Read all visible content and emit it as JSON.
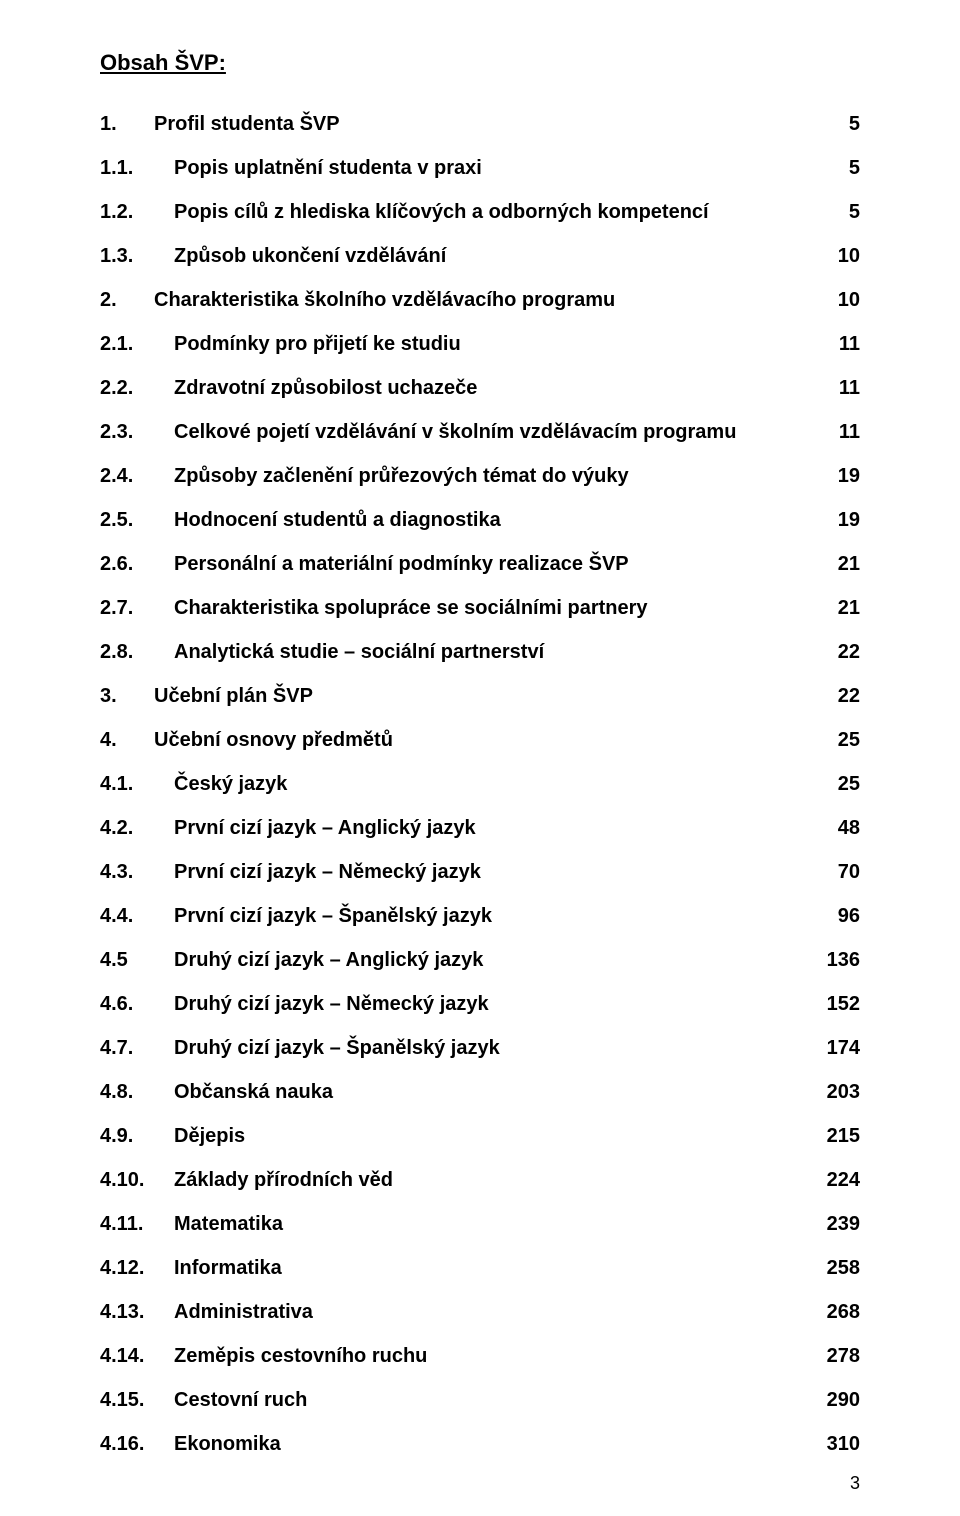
{
  "document": {
    "title": "Obsah ŠVP:",
    "footer_page_number": "3",
    "background_color": "#ffffff",
    "text_color": "#000000",
    "title_fontsize_pt": 16,
    "entry_fontsize_pt": 15,
    "font_family": "Arial",
    "entries": [
      {
        "num": "1.",
        "label": "Profil studenta ŠVP",
        "page": "5",
        "num_short": true
      },
      {
        "num": "1.1.",
        "label": "Popis uplatnění studenta v praxi",
        "page": "5",
        "num_short": false
      },
      {
        "num": "1.2.",
        "label": "Popis cílů z hlediska klíčových a odborných kompetencí",
        "page": "5",
        "num_short": false
      },
      {
        "num": "1.3.",
        "label": "Způsob ukončení vzdělávání",
        "page": "10",
        "num_short": false
      },
      {
        "num": "2.",
        "label": "Charakteristika školního vzdělávacího programu",
        "page": "10",
        "num_short": true
      },
      {
        "num": "2.1.",
        "label": "Podmínky pro přijetí ke studiu",
        "page": "11",
        "num_short": false
      },
      {
        "num": "2.2.",
        "label": "Zdravotní způsobilost uchazeče",
        "page": "11",
        "num_short": false
      },
      {
        "num": "2.3.",
        "label": "Celkové pojetí vzdělávání v školním vzdělávacím programu",
        "page": "11",
        "num_short": false
      },
      {
        "num": "2.4.",
        "label": "Způsoby začlenění průřezových témat do výuky",
        "page": "19",
        "num_short": false
      },
      {
        "num": "2.5.",
        "label": "Hodnocení studentů a diagnostika",
        "page": "19",
        "num_short": false
      },
      {
        "num": "2.6.",
        "label": "Personální a materiální podmínky realizace ŠVP",
        "page": "21",
        "num_short": false
      },
      {
        "num": "2.7.",
        "label": "Charakteristika spolupráce se sociálními partnery",
        "page": "21",
        "num_short": false
      },
      {
        "num": "2.8.",
        "label": "Analytická studie – sociální partnerství",
        "page": "22",
        "num_short": false
      },
      {
        "num": "3.",
        "label": "Učební plán ŠVP",
        "page": "22",
        "num_short": true
      },
      {
        "num": "4.",
        "label": "Učební osnovy předmětů",
        "page": "25",
        "num_short": true
      },
      {
        "num": "4.1.",
        "label": "Český jazyk",
        "page": "25",
        "num_short": false
      },
      {
        "num": "4.2.",
        "label": "První cizí jazyk – Anglický jazyk",
        "page": "48",
        "num_short": false
      },
      {
        "num": "4.3.",
        "label": "První cizí jazyk – Německý jazyk",
        "page": "70",
        "num_short": false
      },
      {
        "num": "4.4.",
        "label": "První cizí jazyk – Španělský jazyk",
        "page": "96",
        "num_short": false
      },
      {
        "num": "4.5",
        "label": "Druhý cizí jazyk – Anglický jazyk",
        "page": "136",
        "num_short": false
      },
      {
        "num": "4.6.",
        "label": "Druhý cizí jazyk – Německý jazyk",
        "page": "152",
        "num_short": false
      },
      {
        "num": "4.7.",
        "label": "Druhý cizí jazyk – Španělský jazyk",
        "page": "174",
        "num_short": false
      },
      {
        "num": "4.8.",
        "label": "Občanská nauka",
        "page": "203",
        "num_short": false
      },
      {
        "num": "4.9.",
        "label": "Dějepis",
        "page": "215",
        "num_short": false
      },
      {
        "num": "4.10.",
        "label": "Základy přírodních věd",
        "page": "224",
        "num_short": false
      },
      {
        "num": "4.11.",
        "label": "Matematika",
        "page": "239",
        "num_short": false
      },
      {
        "num": "4.12.",
        "label": "Informatika",
        "page": "258",
        "num_short": false
      },
      {
        "num": "4.13.",
        "label": "Administrativa",
        "page": "268",
        "num_short": false
      },
      {
        "num": "4.14.",
        "label": "Zeměpis cestovního ruchu",
        "page": "278",
        "num_short": false
      },
      {
        "num": "4.15.",
        "label": "Cestovní ruch",
        "page": "290",
        "num_short": false
      },
      {
        "num": "4.16.",
        "label": "Ekonomika",
        "page": "310",
        "num_short": false
      }
    ]
  }
}
